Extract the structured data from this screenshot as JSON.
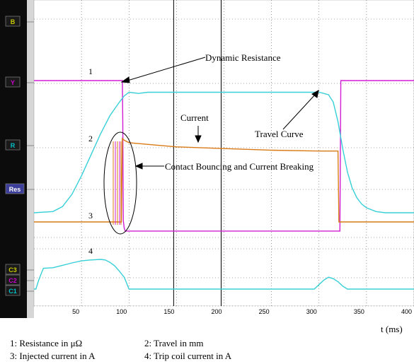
{
  "chart_data": {
    "type": "line",
    "xlabel": "t (ms)",
    "xlim": [
      0,
      400
    ],
    "x_ticks": [
      50,
      100,
      150,
      200,
      250,
      300,
      350,
      400
    ],
    "channels": [
      "B",
      "Y",
      "R",
      "Res",
      "C3",
      "C2",
      "C1"
    ],
    "channel_colors": {
      "B": "#c8c800",
      "Y": "#cc00cc",
      "R": "#00c0c8",
      "Res": "#3d3d9a",
      "C3": "#c8c800",
      "C2": "#cc00cc",
      "C1": "#00c0c8"
    },
    "trace_numbers": [
      "1",
      "2",
      "3",
      "4"
    ],
    "series": [
      {
        "id": "resistance",
        "color": "#d21ed2",
        "x": [
          0,
          93,
          93.5,
          94,
          95,
          96,
          100,
          150,
          200,
          250,
          300,
          322,
          323,
          330,
          350,
          400
        ],
        "y": [
          100,
          100,
          72,
          8,
          3,
          1,
          1,
          1,
          1,
          1,
          1,
          1,
          100,
          100,
          100,
          100
        ]
      },
      {
        "id": "travel",
        "color": "#38d0d8",
        "x": [
          0,
          20,
          30,
          40,
          50,
          60,
          70,
          80,
          90,
          95,
          100,
          110,
          120,
          150,
          200,
          250,
          300,
          310,
          315,
          320,
          325,
          330,
          335,
          340,
          345,
          350,
          360,
          370,
          400
        ],
        "y": [
          0,
          1,
          5,
          15,
          30,
          47,
          64,
          79,
          90,
          95,
          98,
          97,
          98,
          98,
          98,
          98,
          98,
          96,
          90,
          74,
          52,
          33,
          20,
          12,
          7,
          4,
          1,
          0,
          0
        ]
      },
      {
        "id": "current",
        "color": "#d97a16",
        "x": [
          0,
          92,
          93,
          95,
          100,
          150,
          200,
          250,
          300,
          320,
          321,
          330,
          400
        ],
        "y": [
          0,
          0,
          100,
          98,
          95,
          90,
          88,
          86,
          85,
          85,
          0,
          0,
          0
        ]
      },
      {
        "id": "trip_coil_current",
        "color": "#38d0d8",
        "x": [
          0,
          2,
          5,
          8,
          10,
          20,
          30,
          40,
          50,
          60,
          70,
          75,
          80,
          85,
          90,
          95,
          100,
          150,
          200,
          250,
          295,
          300,
          305,
          310,
          315,
          320,
          325,
          330,
          400
        ],
        "y": [
          0,
          0,
          30,
          55,
          70,
          72,
          80,
          88,
          95,
          98,
          100,
          98,
          90,
          78,
          60,
          40,
          0,
          0,
          0,
          0,
          0,
          15,
          30,
          40,
          35,
          25,
          10,
          0,
          0
        ]
      }
    ]
  },
  "annotations": {
    "dynamic_resistance": "Dynamic Resistance",
    "current": "Current",
    "travel_curve": "Travel Curve",
    "contact_bouncing": "Contact Bouncing and Current Breaking"
  },
  "legend": [
    "1: Resistance  in  μΩ",
    "2: Travel  in mm",
    "3: Injected current  in A",
    "4: Trip coil current  in A"
  ]
}
